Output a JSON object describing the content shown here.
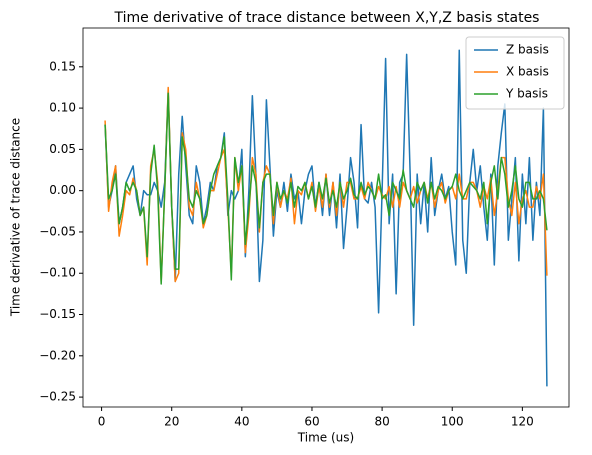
{
  "chart_data": {
    "type": "line",
    "title": "Time derivative of trace distance between X,Y,Z basis states",
    "xlabel": "Time (us)",
    "ylabel": "Time derivative of trace distance",
    "x": [
      1,
      2,
      3,
      4,
      5,
      6,
      7,
      8,
      9,
      10,
      11,
      12,
      13,
      14,
      15,
      16,
      17,
      18,
      19,
      20,
      21,
      22,
      23,
      24,
      25,
      26,
      27,
      28,
      29,
      30,
      31,
      32,
      33,
      34,
      35,
      36,
      37,
      38,
      39,
      40,
      41,
      42,
      43,
      44,
      45,
      46,
      47,
      48,
      49,
      50,
      51,
      52,
      53,
      54,
      55,
      56,
      57,
      58,
      59,
      60,
      61,
      62,
      63,
      64,
      65,
      66,
      67,
      68,
      69,
      70,
      71,
      72,
      73,
      74,
      75,
      76,
      77,
      78,
      79,
      80,
      81,
      82,
      83,
      84,
      85,
      86,
      87,
      88,
      89,
      90,
      91,
      92,
      93,
      94,
      95,
      96,
      97,
      98,
      99,
      100,
      101,
      102,
      103,
      104,
      105,
      106,
      107,
      108,
      109,
      110,
      111,
      112,
      113,
      114,
      115,
      116,
      117,
      118,
      119,
      120,
      121,
      122,
      123,
      124,
      125,
      126,
      127
    ],
    "series": [
      {
        "name": "Z basis",
        "color": "#1f77b4",
        "values": [
          0.08,
          -0.02,
          0.0,
          0.03,
          -0.04,
          -0.02,
          0.01,
          0.02,
          0.03,
          -0.01,
          -0.03,
          0.0,
          -0.005,
          -0.005,
          0.01,
          0.0,
          -0.02,
          0.01,
          0.12,
          -0.02,
          -0.11,
          0.02,
          0.09,
          0.03,
          -0.03,
          -0.04,
          0.03,
          0.01,
          -0.04,
          -0.02,
          0.01,
          0.0,
          0.03,
          0.04,
          0.07,
          -0.03,
          0.0,
          -0.01,
          0.0,
          0.05,
          -0.08,
          0.0,
          0.115,
          0.02,
          -0.11,
          -0.06,
          0.11,
          0.03,
          -0.055,
          0.0,
          -0.02,
          0.01,
          -0.025,
          0.02,
          -0.01,
          0.0,
          -0.04,
          0.0,
          0.02,
          0.03,
          -0.02,
          0.01,
          -0.03,
          0.02,
          -0.03,
          0.01,
          -0.045,
          0.02,
          -0.07,
          -0.02,
          0.04,
          0.01,
          -0.045,
          0.08,
          -0.01,
          -0.015,
          0.01,
          -0.02,
          -0.148,
          0.0,
          0.16,
          -0.04,
          0.02,
          -0.125,
          0.01,
          0.02,
          0.165,
          0.02,
          -0.163,
          0.02,
          -0.04,
          0.01,
          -0.05,
          0.04,
          -0.03,
          0.0,
          0.02,
          -0.01,
          0.005,
          -0.05,
          -0.09,
          0.17,
          -0.06,
          -0.1,
          0.01,
          0.05,
          0.0,
          0.03,
          -0.02,
          -0.06,
          0.02,
          -0.09,
          0.03,
          0.07,
          0.105,
          -0.06,
          -0.01,
          0.04,
          -0.085,
          0.02,
          -0.04,
          0.04,
          -0.06,
          0.01,
          -0.03,
          0.1,
          -0.237
        ]
      },
      {
        "name": "X basis",
        "color": "#ff7f0e",
        "values": [
          0.085,
          -0.025,
          0.01,
          0.03,
          -0.055,
          -0.03,
          0.0,
          -0.005,
          0.015,
          0.0,
          -0.03,
          -0.02,
          -0.09,
          0.03,
          0.05,
          0.01,
          -0.11,
          0.0,
          0.125,
          -0.02,
          -0.11,
          -0.1,
          0.07,
          0.05,
          -0.02,
          -0.03,
          0.01,
          -0.01,
          -0.045,
          -0.03,
          0.0,
          0.0,
          0.02,
          0.04,
          0.05,
          -0.02,
          -0.1,
          0.04,
          0.0,
          0.03,
          -0.075,
          -0.03,
          0.04,
          0.02,
          -0.05,
          0.01,
          0.03,
          0.02,
          -0.04,
          0.01,
          -0.02,
          0.0,
          -0.01,
          0.015,
          -0.04,
          0.0,
          -0.005,
          0.01,
          -0.01,
          0.01,
          -0.025,
          0.005,
          -0.02,
          0.02,
          -0.02,
          0.01,
          -0.03,
          0.01,
          -0.02,
          0.01,
          0.01,
          -0.01,
          -0.01,
          0.005,
          -0.01,
          0.01,
          0.0,
          -0.01,
          0.005,
          -0.005,
          -0.01,
          0.005,
          -0.02,
          0.005,
          -0.02,
          0.01,
          0.0,
          -0.01,
          0.005,
          -0.015,
          0.0,
          0.01,
          -0.01,
          0.01,
          -0.02,
          0.0,
          0.01,
          -0.015,
          0.0,
          0.005,
          -0.01,
          0.02,
          -0.01,
          -0.01,
          0.01,
          0.01,
          0.0,
          -0.02,
          0.005,
          -0.01,
          0.015,
          -0.03,
          0.0,
          0.04,
          0.04,
          -0.01,
          -0.03,
          0.01,
          -0.04,
          -0.01,
          0.0,
          -0.02,
          -0.02,
          0.005,
          -0.01,
          0.02,
          -0.103
        ]
      },
      {
        "name": "Y basis",
        "color": "#2ca02c",
        "values": [
          0.08,
          -0.01,
          0.0,
          0.02,
          -0.04,
          -0.02,
          0.01,
          0.0,
          0.01,
          0.0,
          -0.03,
          -0.02,
          -0.08,
          0.02,
          0.055,
          0.0,
          -0.113,
          0.0,
          0.118,
          -0.02,
          -0.095,
          -0.095,
          0.065,
          0.04,
          -0.01,
          -0.02,
          0.0,
          -0.01,
          -0.04,
          -0.03,
          0.0,
          0.02,
          0.03,
          0.04,
          0.065,
          -0.01,
          -0.108,
          0.04,
          0.01,
          0.03,
          -0.065,
          -0.02,
          0.03,
          0.01,
          -0.045,
          0.01,
          0.02,
          0.02,
          -0.03,
          0.01,
          -0.01,
          0.0,
          -0.015,
          0.01,
          -0.02,
          0.005,
          0.0,
          0.01,
          -0.01,
          0.005,
          -0.02,
          0.01,
          -0.01,
          0.015,
          -0.015,
          0.0,
          -0.02,
          0.01,
          -0.01,
          0.0,
          0.015,
          -0.005,
          -0.01,
          0.01,
          -0.005,
          0.005,
          0.0,
          -0.01,
          0.02,
          -0.01,
          -0.005,
          -0.03,
          0.01,
          0.0,
          -0.01,
          0.025,
          0.0,
          -0.01,
          -0.02,
          0.01,
          0.0,
          0.01,
          -0.015,
          0.01,
          -0.01,
          0.005,
          0.0,
          -0.01,
          0.0,
          0.005,
          0.02,
          0.0,
          -0.01,
          0.0,
          0.01,
          0.005,
          0.0,
          -0.01,
          0.01,
          -0.04,
          0.01,
          0.03,
          -0.01,
          0.04,
          0.02,
          -0.02,
          0.0,
          0.03,
          -0.01,
          -0.02,
          0.01,
          0.01,
          -0.01,
          -0.01,
          0.0,
          -0.01,
          -0.048
        ]
      }
    ],
    "xlim": [
      -5.3,
      133.3
    ],
    "xticks": [
      0,
      20,
      40,
      60,
      80,
      100,
      120
    ],
    "ylim": [
      -0.262,
      0.197
    ],
    "yticks": [
      {
        "value": -0.25,
        "label": "−0.25"
      },
      {
        "value": -0.2,
        "label": "−0.20"
      },
      {
        "value": -0.15,
        "label": "−0.15"
      },
      {
        "value": -0.1,
        "label": "−0.10"
      },
      {
        "value": -0.05,
        "label": "−0.05"
      },
      {
        "value": 0,
        "label": "0.00"
      },
      {
        "value": 0.05,
        "label": "0.05"
      },
      {
        "value": 0.1,
        "label": "0.10"
      },
      {
        "value": 0.15,
        "label": "0.15"
      }
    ],
    "legend": "upper right"
  }
}
